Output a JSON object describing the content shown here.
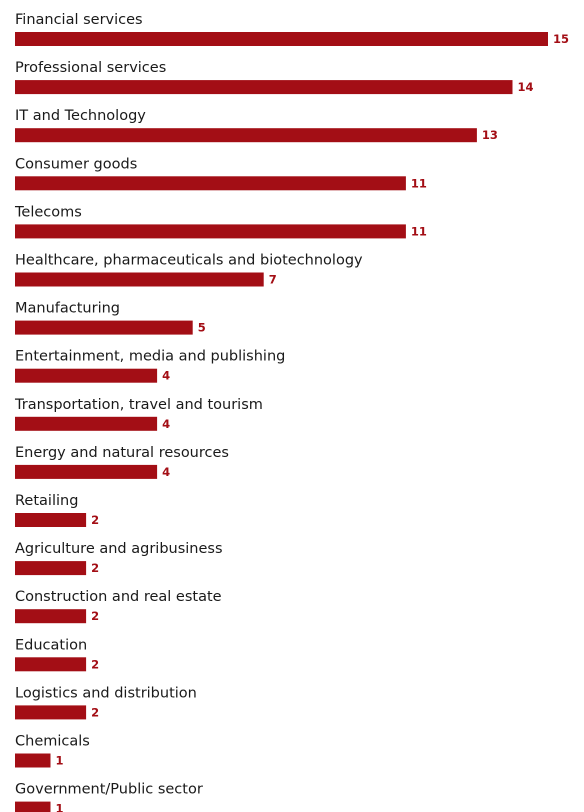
{
  "colors": {
    "bar": "#a30e15",
    "value_text": "#a30e15",
    "label_text": "#1a1a1a",
    "background": "#ffffff"
  },
  "chart_data": {
    "type": "bar",
    "orientation": "horizontal",
    "title": "",
    "xlabel": "",
    "ylabel": "",
    "xlim": [
      0,
      15
    ],
    "grid": false,
    "legend": "none",
    "categories": [
      "Financial services",
      "Professional services",
      "IT and Technology",
      "Consumer goods",
      "Telecoms",
      "Healthcare, pharmaceuticals and biotechnology",
      "Manufacturing",
      "Entertainment, media and publishing",
      "Transportation, travel and tourism",
      "Energy and natural resources",
      "Retailing",
      "Agriculture and agribusiness",
      "Construction and real estate",
      "Education",
      "Logistics and distribution",
      "Chemicals",
      "Government/Public sector"
    ],
    "values": [
      15,
      14,
      13,
      11,
      11,
      7,
      5,
      4,
      4,
      4,
      2,
      2,
      2,
      2,
      2,
      1,
      1
    ]
  }
}
